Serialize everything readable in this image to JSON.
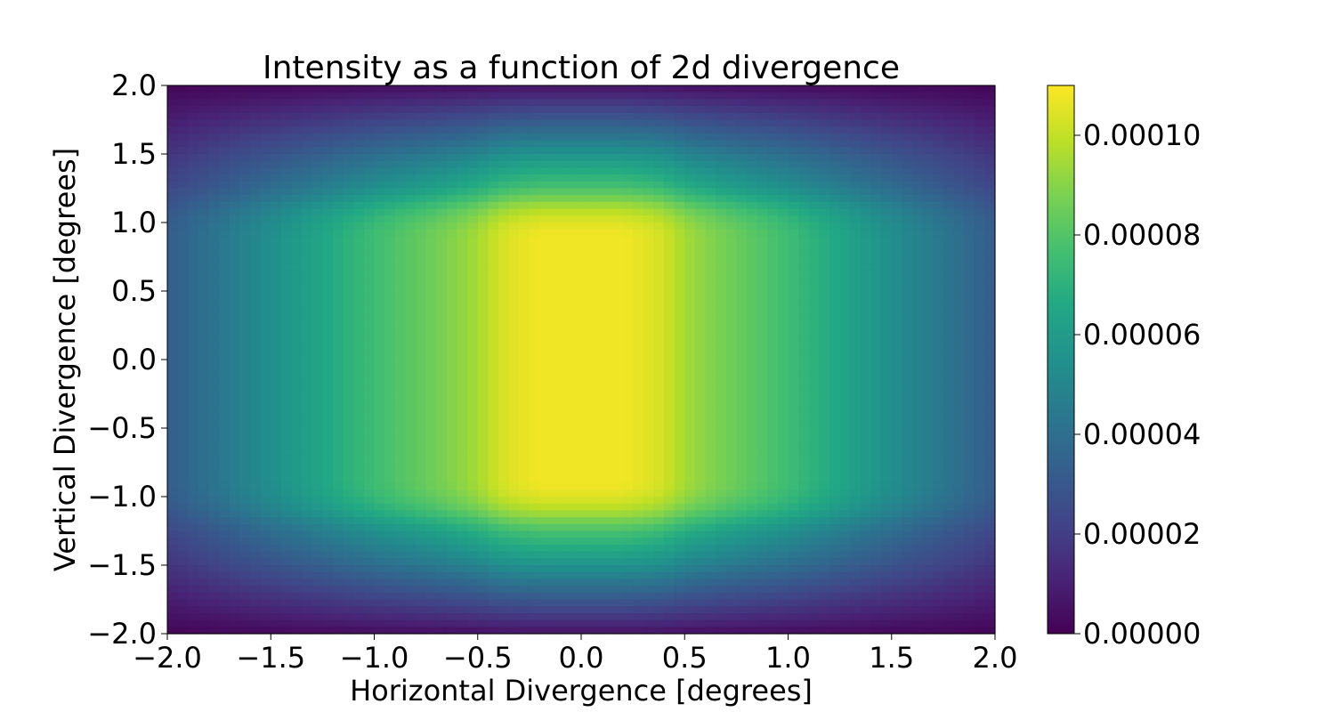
{
  "chart_data": {
    "type": "heatmap",
    "title": "Intensity as a function of 2d divergence",
    "xlabel": "Horizontal Divergence [degrees]",
    "ylabel": "Vertical Divergence [degrees]",
    "xlim": [
      -2.0,
      2.0
    ],
    "ylim": [
      -2.0,
      2.0
    ],
    "xticks": [
      -2.0,
      -1.5,
      -1.0,
      -0.5,
      0.0,
      0.5,
      1.0,
      1.5,
      2.0
    ],
    "xtick_labels": [
      "−2.0",
      "−1.5",
      "−1.0",
      "−0.5",
      "0.0",
      "0.5",
      "1.0",
      "1.5",
      "2.0"
    ],
    "yticks": [
      2.0,
      1.5,
      1.0,
      0.5,
      0.0,
      -0.5,
      -1.0,
      -1.5,
      -2.0
    ],
    "ytick_labels": [
      "2.0",
      "1.5",
      "1.0",
      "0.5",
      "0.0",
      "−0.5",
      "−1.0",
      "−1.5",
      "−2.0"
    ],
    "colorbar": {
      "colormap": "viridis",
      "range": [
        0.0,
        0.00011
      ],
      "ticks": [
        0.0,
        2e-05,
        4e-05,
        6e-05,
        8e-05,
        0.0001
      ],
      "tick_labels": [
        "0.00000",
        "0.00002",
        "0.00004",
        "0.00006",
        "0.00008",
        "0.00010"
      ]
    },
    "grid": false,
    "bins": {
      "x": 80,
      "y": 80
    },
    "x_profile": {
      "x": [
        0.0,
        0.2,
        0.3,
        0.4,
        0.5,
        0.7,
        1.0,
        1.25,
        1.5,
        1.75,
        2.0
      ],
      "relative": [
        1.0,
        1.0,
        0.98,
        0.95,
        0.88,
        0.8,
        0.7,
        0.6,
        0.5,
        0.4,
        0.3
      ]
    },
    "y_profile": {
      "y": [
        0.0,
        0.9,
        1.0,
        1.1,
        1.25,
        1.5,
        1.75,
        2.0
      ],
      "relative": [
        1.0,
        1.0,
        0.97,
        0.9,
        0.72,
        0.52,
        0.28,
        0.05
      ]
    }
  }
}
